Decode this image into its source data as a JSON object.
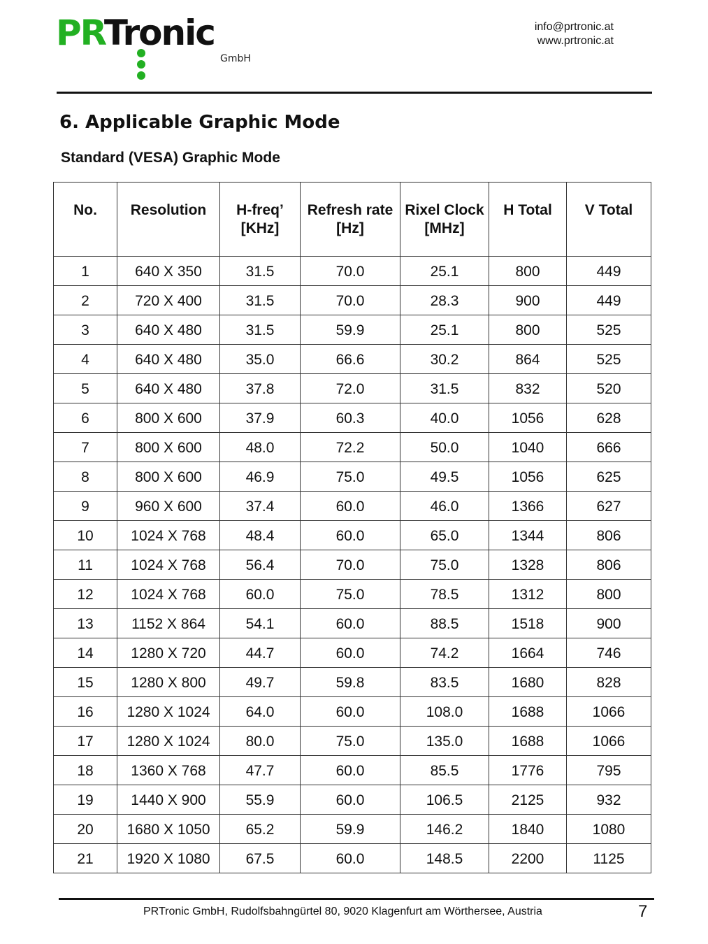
{
  "header": {
    "logo_text": "PRTronic",
    "logo_sub": "GmbH",
    "email": "info@prtronic.at",
    "website": "www.prtronic.at",
    "brand_color": "#22b022"
  },
  "section_title": "6. Applicable Graphic Mode",
  "subtitle": "Standard (VESA) Graphic Mode",
  "table": {
    "columns": [
      [
        "No.",
        ""
      ],
      [
        "Resolution",
        ""
      ],
      [
        "H-freq’",
        "[KHz]"
      ],
      [
        "Refresh rate",
        "[Hz]"
      ],
      [
        "Rixel Clock",
        "[MHz]"
      ],
      [
        "H Total",
        ""
      ],
      [
        "V Total",
        ""
      ]
    ],
    "rows": [
      [
        "1",
        "640 X 350",
        "31.5",
        "70.0",
        "25.1",
        "800",
        "449"
      ],
      [
        "2",
        "720 X 400",
        "31.5",
        "70.0",
        "28.3",
        "900",
        "449"
      ],
      [
        "3",
        "640 X 480",
        "31.5",
        "59.9",
        "25.1",
        "800",
        "525"
      ],
      [
        "4",
        "640 X 480",
        "35.0",
        "66.6",
        "30.2",
        "864",
        "525"
      ],
      [
        "5",
        "640 X 480",
        "37.8",
        "72.0",
        "31.5",
        "832",
        "520"
      ],
      [
        "6",
        "800 X 600",
        "37.9",
        "60.3",
        "40.0",
        "1056",
        "628"
      ],
      [
        "7",
        "800 X 600",
        "48.0",
        "72.2",
        "50.0",
        "1040",
        "666"
      ],
      [
        "8",
        "800 X 600",
        "46.9",
        "75.0",
        "49.5",
        "1056",
        "625"
      ],
      [
        "9",
        "960 X 600",
        "37.4",
        "60.0",
        "46.0",
        "1366",
        "627"
      ],
      [
        "10",
        "1024 X 768",
        "48.4",
        "60.0",
        "65.0",
        "1344",
        "806"
      ],
      [
        "11",
        "1024 X 768",
        "56.4",
        "70.0",
        "75.0",
        "1328",
        "806"
      ],
      [
        "12",
        "1024 X 768",
        "60.0",
        "75.0",
        "78.5",
        "1312",
        "800"
      ],
      [
        "13",
        "1152 X 864",
        "54.1",
        "60.0",
        "88.5",
        "1518",
        "900"
      ],
      [
        "14",
        "1280 X 720",
        "44.7",
        "60.0",
        "74.2",
        "1664",
        "746"
      ],
      [
        "15",
        "1280 X 800",
        "49.7",
        "59.8",
        "83.5",
        "1680",
        "828"
      ],
      [
        "16",
        "1280 X 1024",
        "64.0",
        "60.0",
        "108.0",
        "1688",
        "1066"
      ],
      [
        "17",
        "1280 X 1024",
        "80.0",
        "75.0",
        "135.0",
        "1688",
        "1066"
      ],
      [
        "18",
        "1360 X 768",
        "47.7",
        "60.0",
        "85.5",
        "1776",
        "795"
      ],
      [
        "19",
        "1440 X 900",
        "55.9",
        "60.0",
        "106.5",
        "2125",
        "932"
      ],
      [
        "20",
        "1680 X 1050",
        "65.2",
        "59.9",
        "146.2",
        "1840",
        "1080"
      ],
      [
        "21",
        "1920 X 1080",
        "67.5",
        "60.0",
        "148.5",
        "2200",
        "1125"
      ]
    ]
  },
  "footer": {
    "address": "PRTronic GmbH, Rudolfsbahngürtel 80, 9020 Klagenfurt am Wörthersee, Austria",
    "page_number": "7"
  }
}
